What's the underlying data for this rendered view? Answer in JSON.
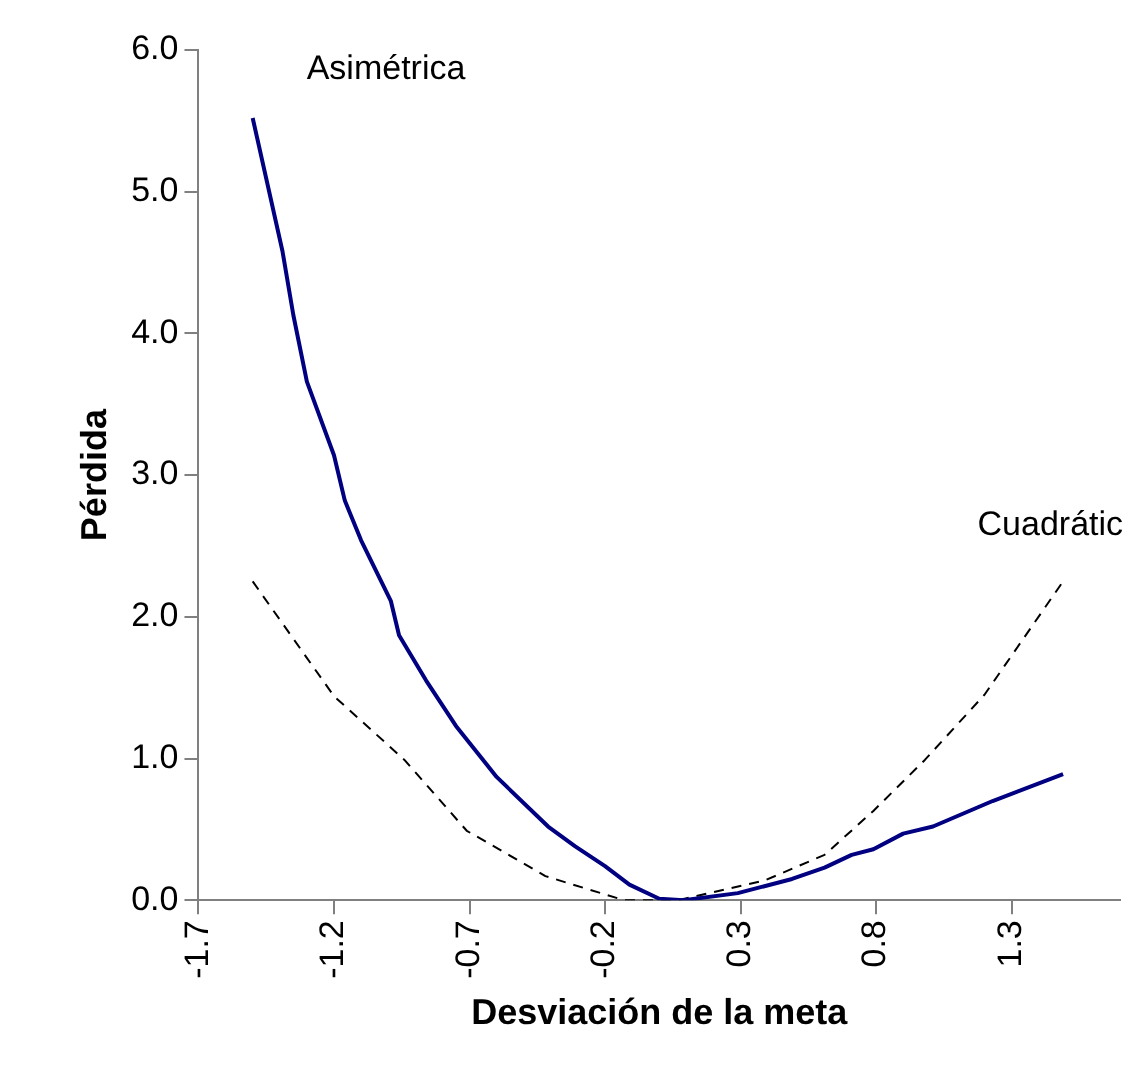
{
  "chart_data": {
    "type": "line",
    "xlabel": "Desviación de la meta",
    "ylabel": "Pérdida",
    "xlim": [
      -1.7,
      1.7
    ],
    "xticks": [
      {
        "value": -1.7,
        "label": "-1.7"
      },
      {
        "value": -1.2,
        "label": "-1.2"
      },
      {
        "value": -0.7,
        "label": "-0.7"
      },
      {
        "value": -0.2,
        "label": "-0.2"
      },
      {
        "value": 0.3,
        "label": "0.3"
      },
      {
        "value": 0.8,
        "label": "0.8"
      },
      {
        "value": 1.3,
        "label": "1.3"
      }
    ],
    "ylim": [
      0,
      6
    ],
    "yticks": [
      {
        "value": 0,
        "label": "0.0"
      },
      {
        "value": 1,
        "label": "1.0"
      },
      {
        "value": 2,
        "label": "2.0"
      },
      {
        "value": 3,
        "label": "3.0"
      },
      {
        "value": 4,
        "label": "4.0"
      },
      {
        "value": 5,
        "label": "5.0"
      },
      {
        "value": 6,
        "label": "6.0"
      }
    ],
    "grid": false,
    "legend": false,
    "marker": "none",
    "series": [
      {
        "name": "Asimétrica",
        "color": "#000080",
        "line_style": "solid",
        "x": [
          -1.5,
          -1.39,
          -1.35,
          -1.3,
          -1.2,
          -1.16,
          -1.1,
          -0.99,
          -0.96,
          -0.86,
          -0.75,
          -0.6,
          -0.41,
          -0.31,
          -0.2,
          -0.11,
          0.0,
          0.09,
          0.29,
          0.49,
          0.61,
          0.71,
          0.79,
          0.9,
          1.01,
          1.23,
          1.49
        ],
        "values": [
          5.52,
          4.58,
          4.13,
          3.66,
          3.14,
          2.82,
          2.54,
          2.11,
          1.87,
          1.55,
          1.23,
          0.87,
          0.52,
          0.38,
          0.24,
          0.11,
          0.01,
          0,
          0.05,
          0.15,
          0.23,
          0.32,
          0.36,
          0.47,
          0.52,
          0.7,
          0.89
        ]
      },
      {
        "name": "Cuadrátic",
        "color": "#000000",
        "line_style": "dashed",
        "x": [
          -1.5,
          -1.2,
          -0.94,
          -0.71,
          -0.42,
          -0.13,
          0.07,
          0.39,
          0.61,
          0.79,
          0.98,
          1.2,
          1.49
        ],
        "values": [
          2.25,
          1.44,
          0.99,
          0.49,
          0.17,
          0,
          0,
          0.14,
          0.32,
          0.63,
          0.99,
          1.45,
          2.25
        ]
      }
    ]
  }
}
